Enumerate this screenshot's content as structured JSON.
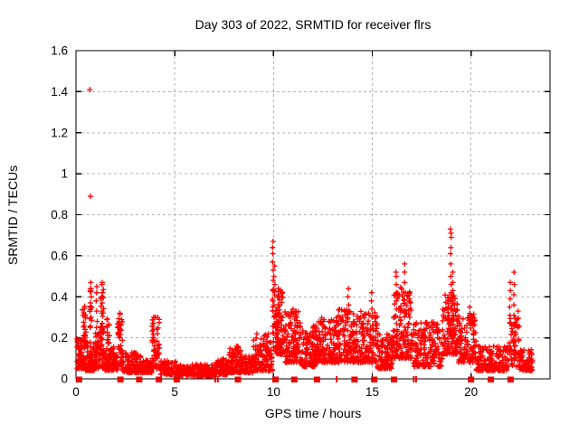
{
  "window": {
    "title": "Day 303 of 2022, SRMTID for receiver flrs"
  },
  "chart_data": {
    "type": "scatter",
    "title": "Day 303 of 2022, SRMTID for receiver flrs",
    "xlabel": "GPS time / hours",
    "ylabel": "SRMTID / TECUs",
    "xlim": [
      0,
      24
    ],
    "ylim": [
      0,
      1.6
    ],
    "xticks": [
      0,
      5,
      10,
      15,
      20
    ],
    "xtick_labels": [
      "0",
      "5",
      "10",
      "15",
      "20"
    ],
    "yticks": [
      0,
      0.2,
      0.4,
      0.6,
      0.8,
      1.0,
      1.2,
      1.4,
      1.6
    ],
    "ytick_labels": [
      "0",
      "0.2",
      "0.4",
      "0.6",
      "0.8",
      "1",
      "1.2",
      "1.4",
      "1.6"
    ],
    "grid": "dashed-major-both-axes",
    "legend": "none",
    "marker": "plus",
    "marker_size_px": 6,
    "colors": {
      "points": "#ff0000",
      "baseline_markers": "#ee0000",
      "grid": "#b3b3b3",
      "axis": "#000000",
      "text": "#000000",
      "background": "#ffffff"
    },
    "outlier_points": [
      [
        0.71,
        1.41
      ],
      [
        0.71,
        0.89
      ]
    ],
    "bands_format": [
      "x_start_hour",
      "x_end_hour",
      "y_min_TECU",
      "y_max_TECU",
      "approx_point_count"
    ],
    "bands": [
      [
        0.05,
        0.45,
        0.05,
        0.2,
        70
      ],
      [
        0.3,
        0.5,
        0.18,
        0.36,
        25
      ],
      [
        0.45,
        0.95,
        0.04,
        0.18,
        80
      ],
      [
        0.7,
        0.8,
        0.25,
        0.47,
        14
      ],
      [
        0.95,
        1.45,
        0.05,
        0.25,
        80
      ],
      [
        1.25,
        1.4,
        0.2,
        0.47,
        16
      ],
      [
        1.45,
        2.1,
        0.04,
        0.16,
        90
      ],
      [
        1.55,
        1.7,
        0.15,
        0.3,
        14
      ],
      [
        2.1,
        2.35,
        0.06,
        0.32,
        40
      ],
      [
        2.35,
        3.3,
        0.03,
        0.13,
        120
      ],
      [
        3.3,
        3.85,
        0.03,
        0.1,
        70
      ],
      [
        3.85,
        4.25,
        0.05,
        0.3,
        60
      ],
      [
        4.25,
        5.1,
        0.02,
        0.09,
        100
      ],
      [
        5.1,
        7.0,
        0.015,
        0.07,
        230
      ],
      [
        7.0,
        7.7,
        0.02,
        0.1,
        90
      ],
      [
        7.7,
        8.35,
        0.03,
        0.16,
        90
      ],
      [
        8.35,
        8.95,
        0.03,
        0.11,
        80
      ],
      [
        8.95,
        9.95,
        0.04,
        0.22,
        130
      ],
      [
        9.95,
        10.55,
        0.12,
        0.45,
        110
      ],
      [
        10.55,
        11.35,
        0.08,
        0.34,
        120
      ],
      [
        11.35,
        12.15,
        0.06,
        0.26,
        110
      ],
      [
        12.15,
        13.15,
        0.08,
        0.3,
        140
      ],
      [
        13.15,
        14.15,
        0.08,
        0.34,
        140
      ],
      [
        14.15,
        15.25,
        0.08,
        0.33,
        140
      ],
      [
        15.25,
        16.05,
        0.05,
        0.22,
        100
      ],
      [
        16.05,
        17.05,
        0.1,
        0.46,
        150
      ],
      [
        17.05,
        18.55,
        0.06,
        0.28,
        180
      ],
      [
        18.55,
        19.35,
        0.12,
        0.42,
        130
      ],
      [
        19.35,
        20.25,
        0.08,
        0.32,
        110
      ],
      [
        20.25,
        21.9,
        0.04,
        0.16,
        170
      ],
      [
        21.9,
        22.45,
        0.06,
        0.3,
        55
      ],
      [
        22.45,
        23.1,
        0.04,
        0.15,
        80
      ]
    ],
    "spike_columns_format": [
      "x_hour",
      "y_values_TECU"
    ],
    "spike_columns": [
      [
        0.71,
        [
          1.41,
          0.89
        ]
      ],
      [
        0.75,
        [
          0.3,
          0.35,
          0.4,
          0.44,
          0.47
        ]
      ],
      [
        1.05,
        [
          0.28,
          0.33,
          0.38,
          0.42,
          0.45
        ]
      ],
      [
        1.32,
        [
          0.22,
          0.27,
          0.32,
          0.37,
          0.42,
          0.47
        ]
      ],
      [
        2.2,
        [
          0.2,
          0.24,
          0.28,
          0.32
        ]
      ],
      [
        3.95,
        [
          0.16,
          0.2,
          0.24,
          0.27,
          0.3
        ]
      ],
      [
        9.97,
        [
          0.33,
          0.38,
          0.43,
          0.48,
          0.53,
          0.57,
          0.61,
          0.64,
          0.67
        ]
      ],
      [
        10.04,
        [
          0.3,
          0.36,
          0.41,
          0.46,
          0.5,
          0.55
        ]
      ],
      [
        10.25,
        [
          0.25,
          0.3,
          0.35,
          0.4,
          0.44
        ]
      ],
      [
        13.78,
        [
          0.28,
          0.32,
          0.36,
          0.4,
          0.44
        ]
      ],
      [
        14.98,
        [
          0.26,
          0.3,
          0.34,
          0.38,
          0.42
        ]
      ],
      [
        16.22,
        [
          0.34,
          0.38,
          0.42,
          0.46,
          0.5,
          0.52
        ]
      ],
      [
        16.65,
        [
          0.32,
          0.37,
          0.42,
          0.47,
          0.52,
          0.56
        ]
      ],
      [
        18.98,
        [
          0.42,
          0.46,
          0.5,
          0.56,
          0.61,
          0.64,
          0.69,
          0.71,
          0.73
        ]
      ],
      [
        19.05,
        [
          0.38,
          0.43,
          0.47,
          0.52
        ]
      ],
      [
        19.95,
        [
          0.27,
          0.31,
          0.35
        ]
      ],
      [
        21.98,
        [
          0.27,
          0.31,
          0.35,
          0.39,
          0.43,
          0.47
        ]
      ],
      [
        22.18,
        [
          0.26,
          0.31,
          0.36,
          0.41,
          0.46,
          0.52
        ]
      ],
      [
        22.35,
        [
          0.25,
          0.29,
          0.33
        ]
      ]
    ],
    "baseline_markers": {
      "y": 0,
      "square_hours": [
        0.15,
        2.25,
        3.2,
        4.2,
        5.1,
        8.2,
        10.1,
        11.05,
        12.2,
        14.1,
        15.1,
        16.1,
        20.0,
        21.0,
        22.0
      ],
      "thin_hours": [
        7.05,
        7.18,
        13.2,
        17.1,
        17.22
      ]
    },
    "seed": 20221030
  }
}
